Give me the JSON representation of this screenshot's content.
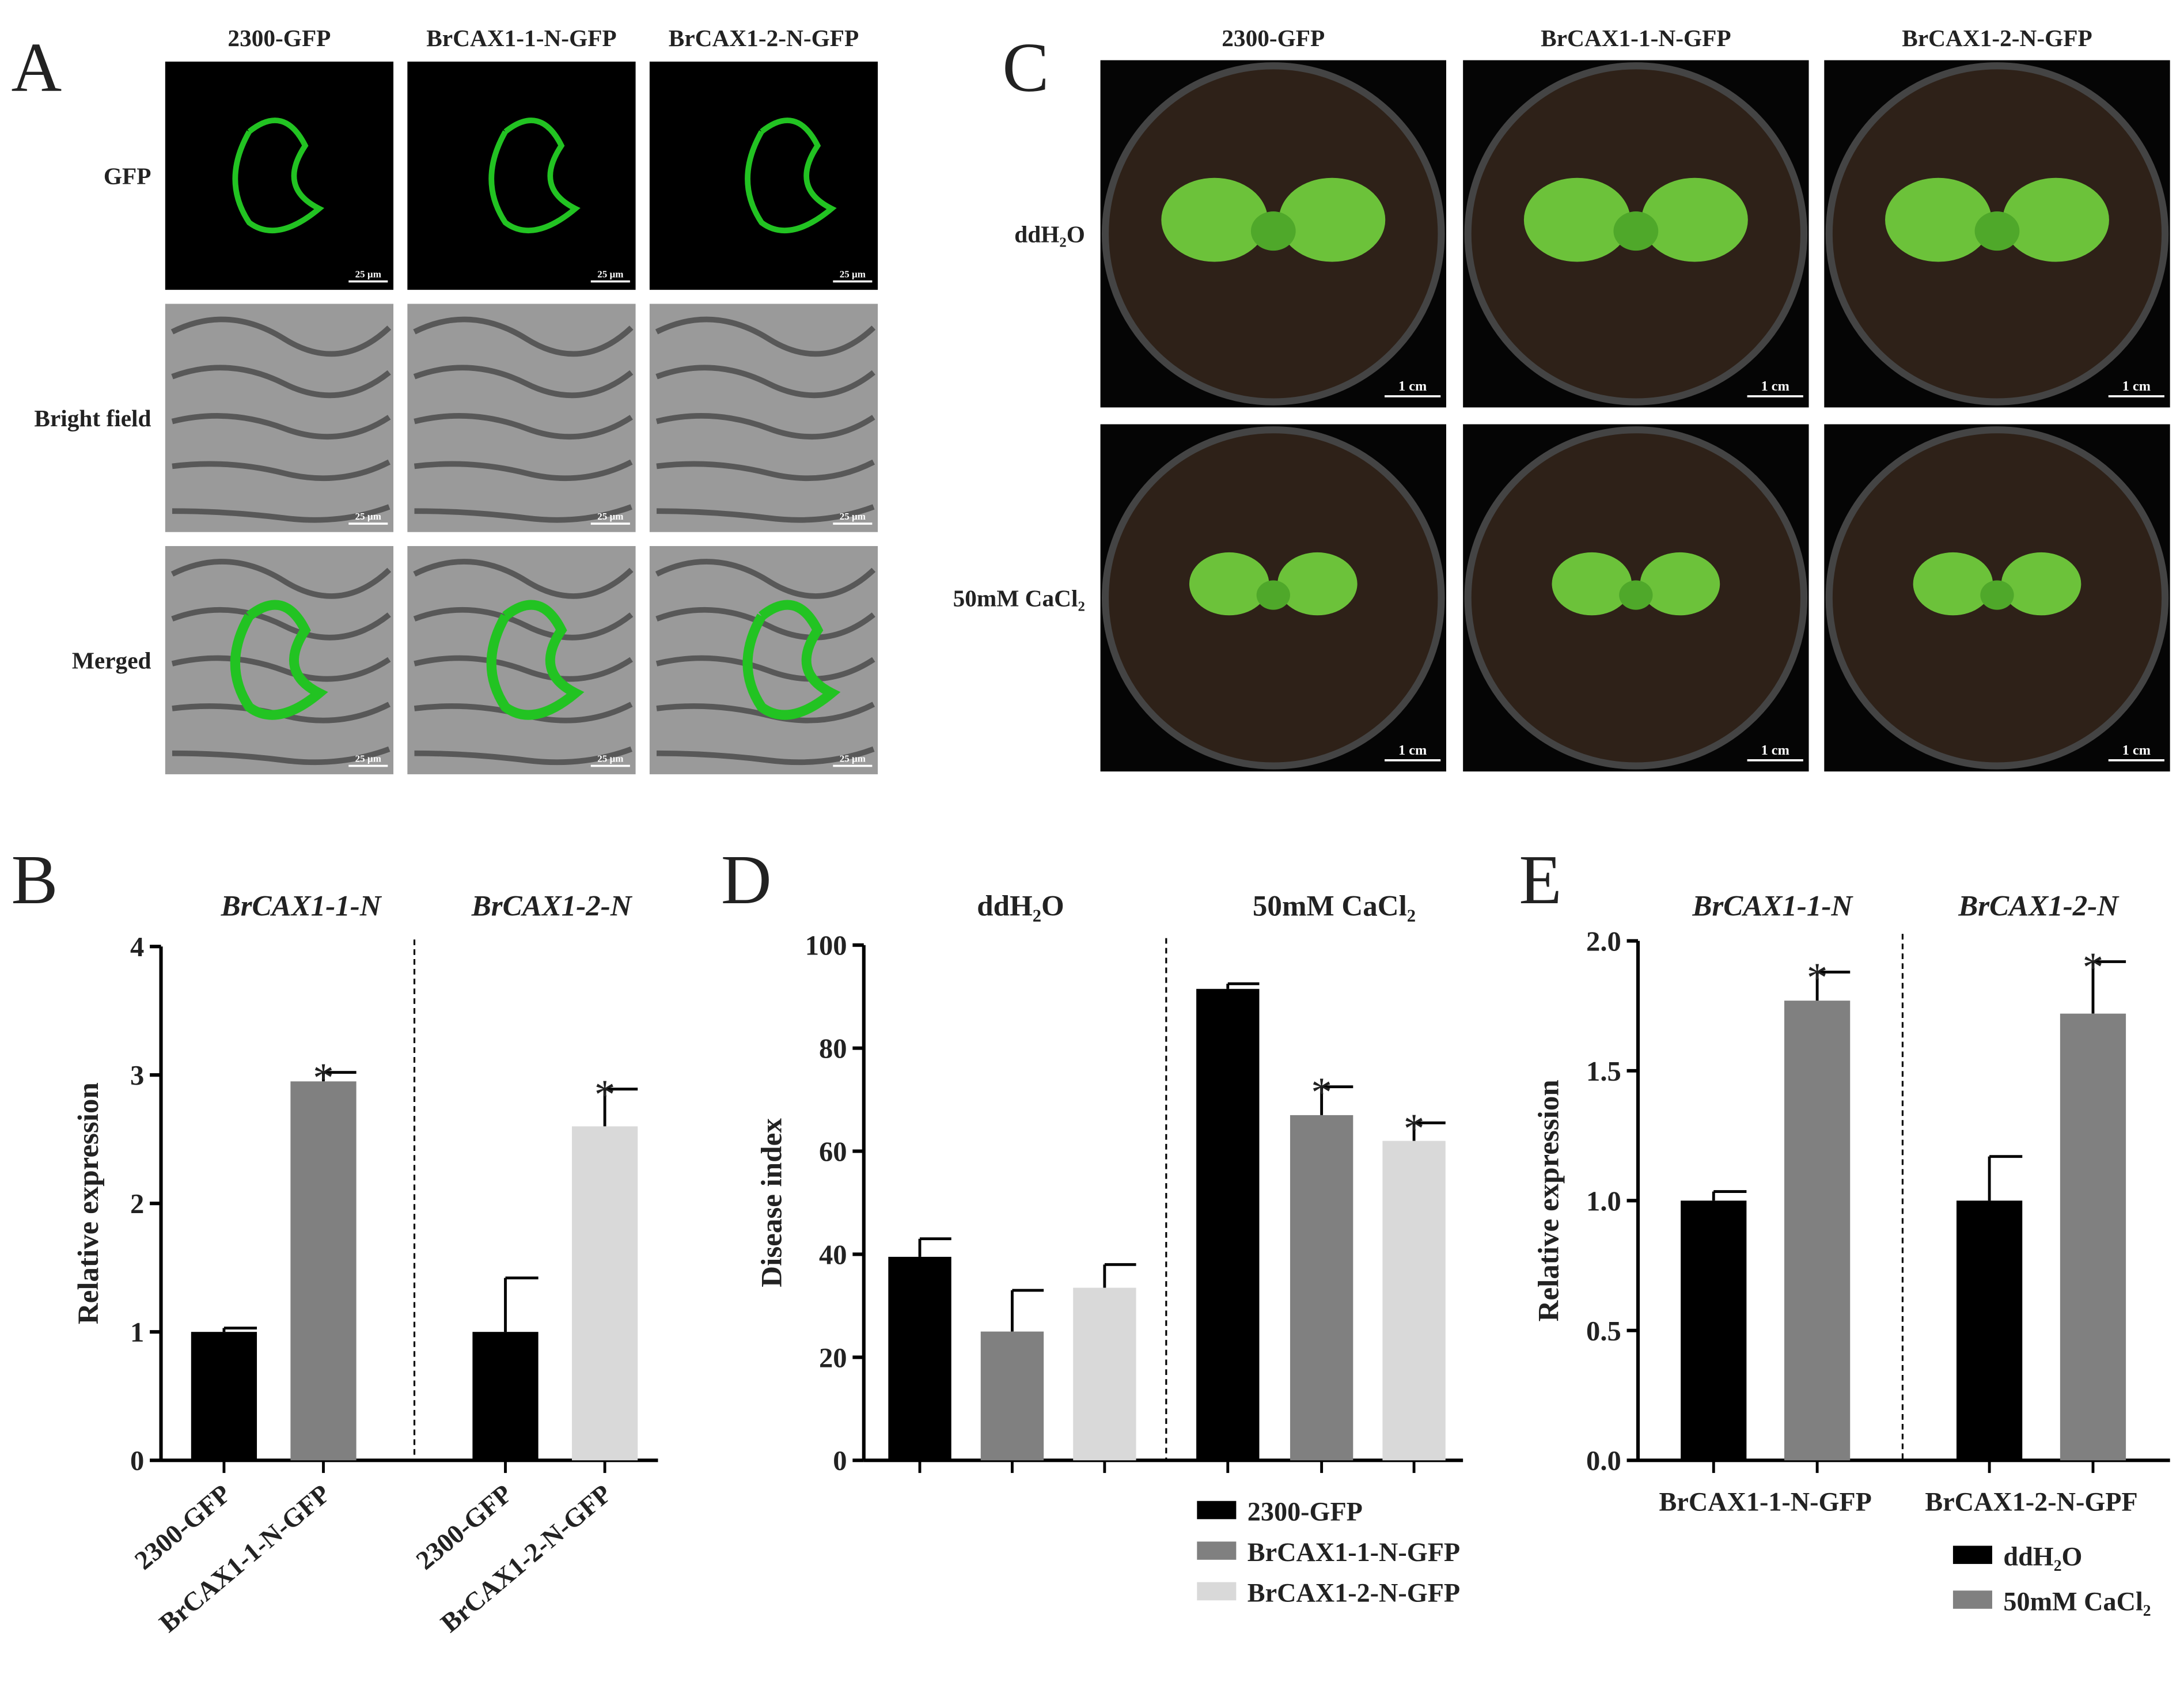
{
  "panel_a": {
    "label": "A",
    "columns": [
      "2300-GFP",
      "BrCAX1-1-N-GFP",
      "BrCAX1-2-N-GFP"
    ],
    "rows": [
      "GFP",
      "Bright field",
      "Merged"
    ],
    "scale_bar": "25 µm"
  },
  "panel_c": {
    "label": "C",
    "columns": [
      "2300-GFP",
      "BrCAX1-1-N-GFP",
      "BrCAX1-2-N-GFP"
    ],
    "rows": [
      "ddH₂O",
      "50mM CaCl₂"
    ],
    "scale_bar": "1 cm"
  },
  "chart_data": [
    {
      "type": "bar",
      "label": "B",
      "group_titles": [
        "BrCAX1-1-N",
        "BrCAX1-2-N"
      ],
      "categories": [
        "2300-GFP",
        "BrCAX1-1-N-GFP",
        "2300-GFP",
        "BrCAX1-2-N-GFP"
      ],
      "values": [
        1,
        2.95,
        1,
        2.6
      ],
      "errors": [
        0.03,
        0.07,
        0.42,
        0.29
      ],
      "colors": [
        "#000000",
        "#808080",
        "#000000",
        "#d9d9d9"
      ],
      "significance": [
        null,
        "*",
        null,
        "*"
      ],
      "ylabel": "Relative expression",
      "ylim": [
        0,
        4
      ],
      "yticks": [
        0,
        1,
        2,
        3,
        4
      ]
    },
    {
      "type": "bar",
      "label": "D",
      "categories": [
        "ddH₂O",
        "50mM CaCl₂"
      ],
      "series": [
        {
          "name": "2300-GFP",
          "color": "#000000",
          "values": [
            39.5,
            91.5
          ],
          "errors": [
            3.5,
            1
          ],
          "significance": [
            null,
            null
          ]
        },
        {
          "name": "BrCAX1-1-N-GFP",
          "color": "#808080",
          "values": [
            25,
            67
          ],
          "errors": [
            8,
            5.5
          ],
          "significance": [
            null,
            "*"
          ]
        },
        {
          "name": "BrCAX1-2-N-GFP",
          "color": "#d9d9d9",
          "values": [
            33.5,
            62
          ],
          "errors": [
            4.5,
            3.5
          ],
          "significance": [
            null,
            "*"
          ]
        }
      ],
      "ylabel": "Disease index",
      "ylim": [
        0,
        100
      ],
      "yticks": [
        0,
        20,
        40,
        60,
        80,
        100
      ],
      "legend": "bottom"
    },
    {
      "type": "bar",
      "label": "E",
      "group_titles": [
        "BrCAX1-1-N",
        "BrCAX1-2-N"
      ],
      "categories": [
        "BrCAX1-1-N-GFP",
        "BrCAX1-2-N-GPF"
      ],
      "series": [
        {
          "name": "ddH₂O",
          "color": "#000000",
          "values": [
            1,
            1
          ],
          "errors": [
            0.035,
            0.17
          ],
          "significance": [
            null,
            null
          ]
        },
        {
          "name": "50mM CaCl₂",
          "color": "#808080",
          "values": [
            1.77,
            1.72
          ],
          "errors": [
            0.11,
            0.2
          ],
          "significance": [
            "*",
            "*"
          ]
        }
      ],
      "ylabel": "Relative expression",
      "ylim": [
        0,
        2
      ],
      "yticks": [
        {
          "value": 0,
          "label": "0.0"
        },
        0.5,
        {
          "value": 1,
          "label": "1.0"
        },
        1.5,
        {
          "value": 2,
          "label": "2.0"
        }
      ],
      "legend": "bottom"
    }
  ]
}
